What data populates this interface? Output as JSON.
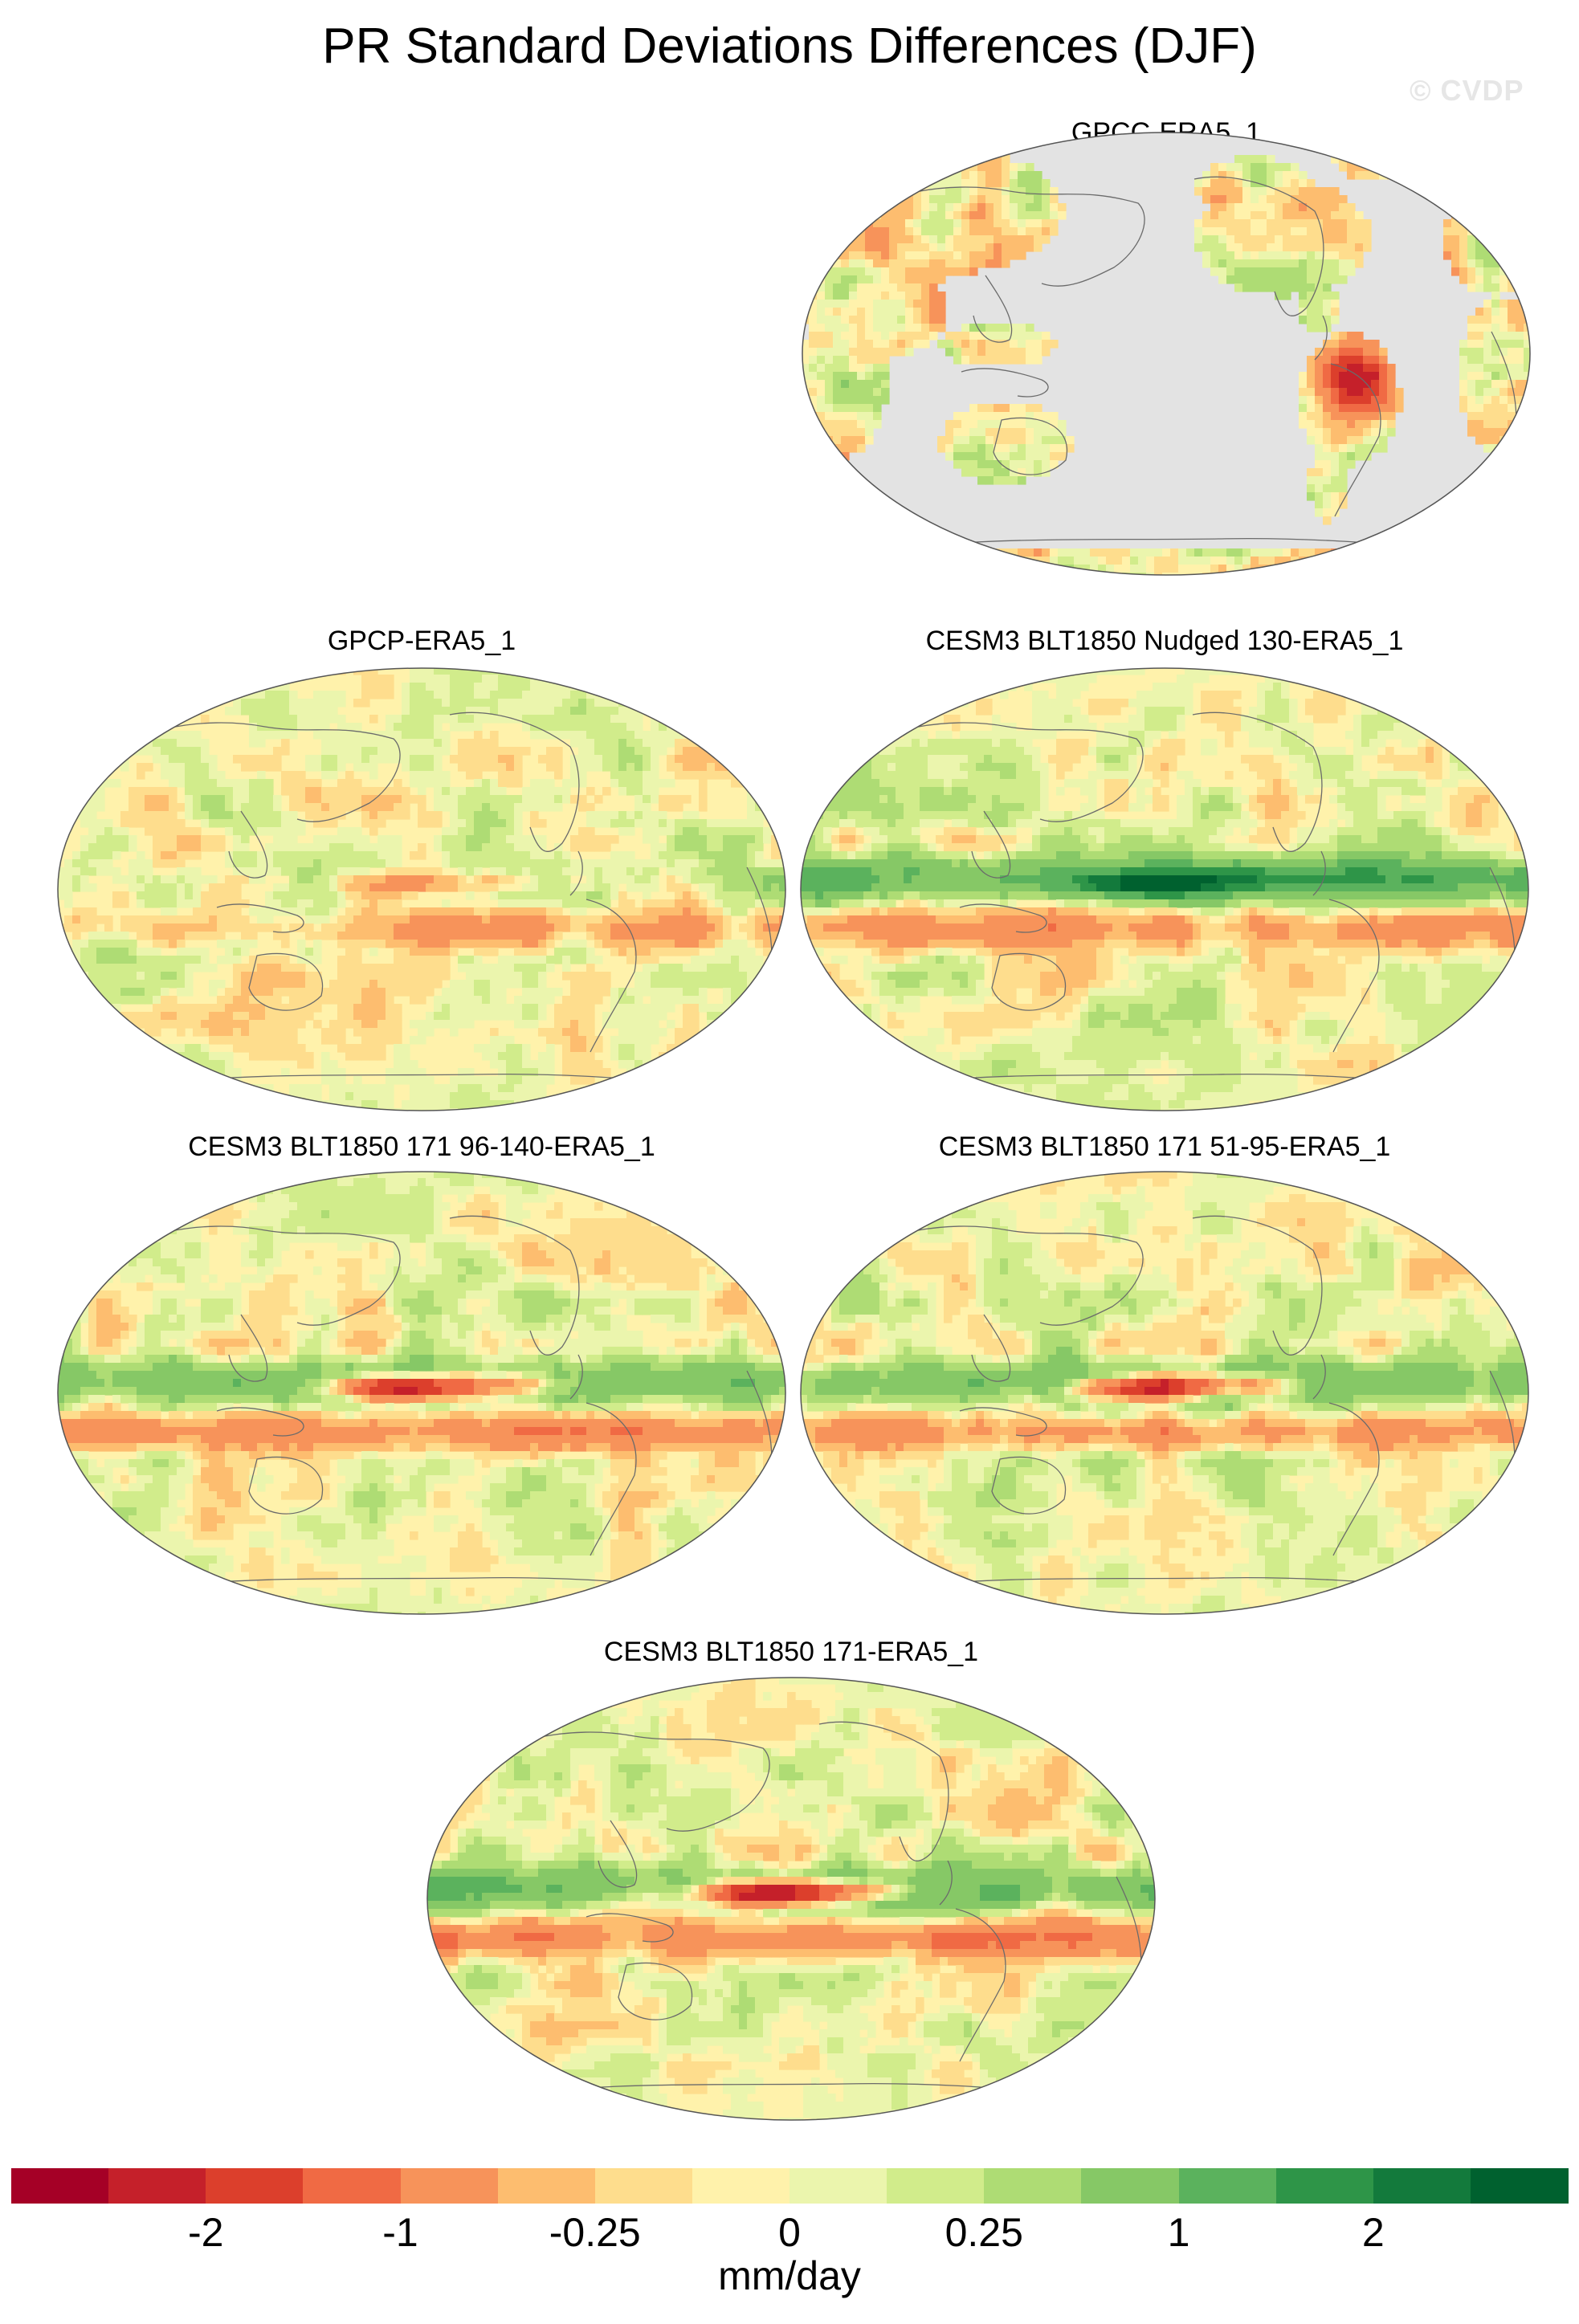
{
  "figure": {
    "title": "PR Standard Deviations Differences (DJF)",
    "watermark": "© CVDP"
  },
  "panels": [
    {
      "label": "GPCC-ERA5_1",
      "mode": "land",
      "pacific": 0.5,
      "tropics": -0.6,
      "southtrop": -0.2
    },
    {
      "label": "GPCP-ERA5_1",
      "mode": "full",
      "pacific": -0.6,
      "tropics": 0.2,
      "southtrop": -0.4
    },
    {
      "label": "CESM3 BLT1850 Nudged 130-ERA5_1",
      "mode": "full",
      "pacific": 1.6,
      "tropics": 1.2,
      "southtrop": -0.6
    },
    {
      "label": "CESM3 BLT1850 171 96-140-ERA5_1",
      "mode": "full",
      "pacific": -2.5,
      "tropics": 0.9,
      "southtrop": -0.8
    },
    {
      "label": "CESM3 BLT1850 171 51-95-ERA5_1",
      "mode": "full",
      "pacific": -2.5,
      "tropics": 0.9,
      "southtrop": -0.8
    },
    {
      "label": "CESM3 BLT1850 171-ERA5_1",
      "mode": "full",
      "pacific": -2.6,
      "tropics": 1.0,
      "southtrop": -0.8
    }
  ],
  "colorbar": {
    "colors": [
      "#a50026",
      "#c5202a",
      "#dc3f2c",
      "#f06a44",
      "#f7935a",
      "#fdbd6f",
      "#fedd8d",
      "#fff2ab",
      "#ebf5ad",
      "#d1ec8b",
      "#aedc74",
      "#86c866",
      "#5bb25d",
      "#2e9548",
      "#137a3c",
      "#00612f"
    ],
    "tick_labels": [
      "-2",
      "-1",
      "-0.25",
      "0",
      "0.25",
      "1",
      "2"
    ],
    "units": "mm/day"
  }
}
